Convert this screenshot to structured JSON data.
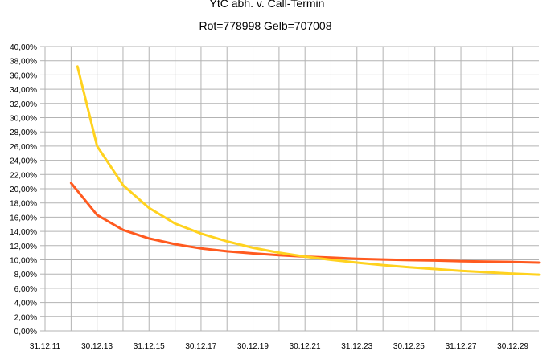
{
  "chart_data": {
    "type": "line",
    "title": "YtC abh. v. Call-Termin",
    "subtitle": "Rot=778998 Gelb=707008",
    "xlabel": "",
    "ylabel": "",
    "x_tick_labels": [
      "31.12.11",
      "30.12.13",
      "31.12.15",
      "30.12.17",
      "30.12.19",
      "30.12.21",
      "31.12.23",
      "30.12.25",
      "31.12.27",
      "30.12.29"
    ],
    "y_tick_labels": [
      "0,00%",
      "2,00%",
      "4,00%",
      "6,00%",
      "8,00%",
      "10,00%",
      "12,00%",
      "14,00%",
      "16,00%",
      "18,00%",
      "20,00%",
      "22,00%",
      "24,00%",
      "26,00%",
      "28,00%",
      "30,00%",
      "32,00%",
      "34,00%",
      "36,00%",
      "38,00%",
      "40,00%"
    ],
    "ylim": [
      0,
      40
    ],
    "xlim": [
      "31.12.11",
      "31.12.30"
    ],
    "grid": true,
    "series": [
      {
        "color": "#ff5a1f",
        "x": [
          "31.12.12",
          "31.12.13",
          "31.12.14",
          "31.12.15",
          "31.12.16",
          "31.12.17",
          "31.12.18",
          "31.12.19",
          "31.12.20",
          "31.12.21",
          "31.12.22",
          "31.12.23",
          "31.12.24",
          "31.12.25",
          "31.12.26",
          "31.12.27",
          "31.12.28",
          "31.12.29",
          "31.12.30"
        ],
        "values": [
          20.8,
          16.3,
          14.2,
          13.0,
          12.2,
          11.6,
          11.2,
          10.9,
          10.65,
          10.45,
          10.3,
          10.15,
          10.05,
          9.95,
          9.9,
          9.8,
          9.75,
          9.7,
          9.6
        ]
      },
      {
        "color": "#ffd21f",
        "x": [
          "31.03.13",
          "31.12.13",
          "31.12.14",
          "31.12.15",
          "31.12.16",
          "31.12.17",
          "31.12.18",
          "31.12.19",
          "31.12.20",
          "31.12.21",
          "31.12.22",
          "31.12.23",
          "31.12.24",
          "31.12.25",
          "31.12.26",
          "31.12.27",
          "31.12.28",
          "31.12.29",
          "31.12.30"
        ],
        "values": [
          37.2,
          26.0,
          20.5,
          17.3,
          15.1,
          13.7,
          12.6,
          11.7,
          11.0,
          10.45,
          10.0,
          9.6,
          9.25,
          8.95,
          8.7,
          8.45,
          8.25,
          8.05,
          7.9
        ]
      }
    ]
  }
}
